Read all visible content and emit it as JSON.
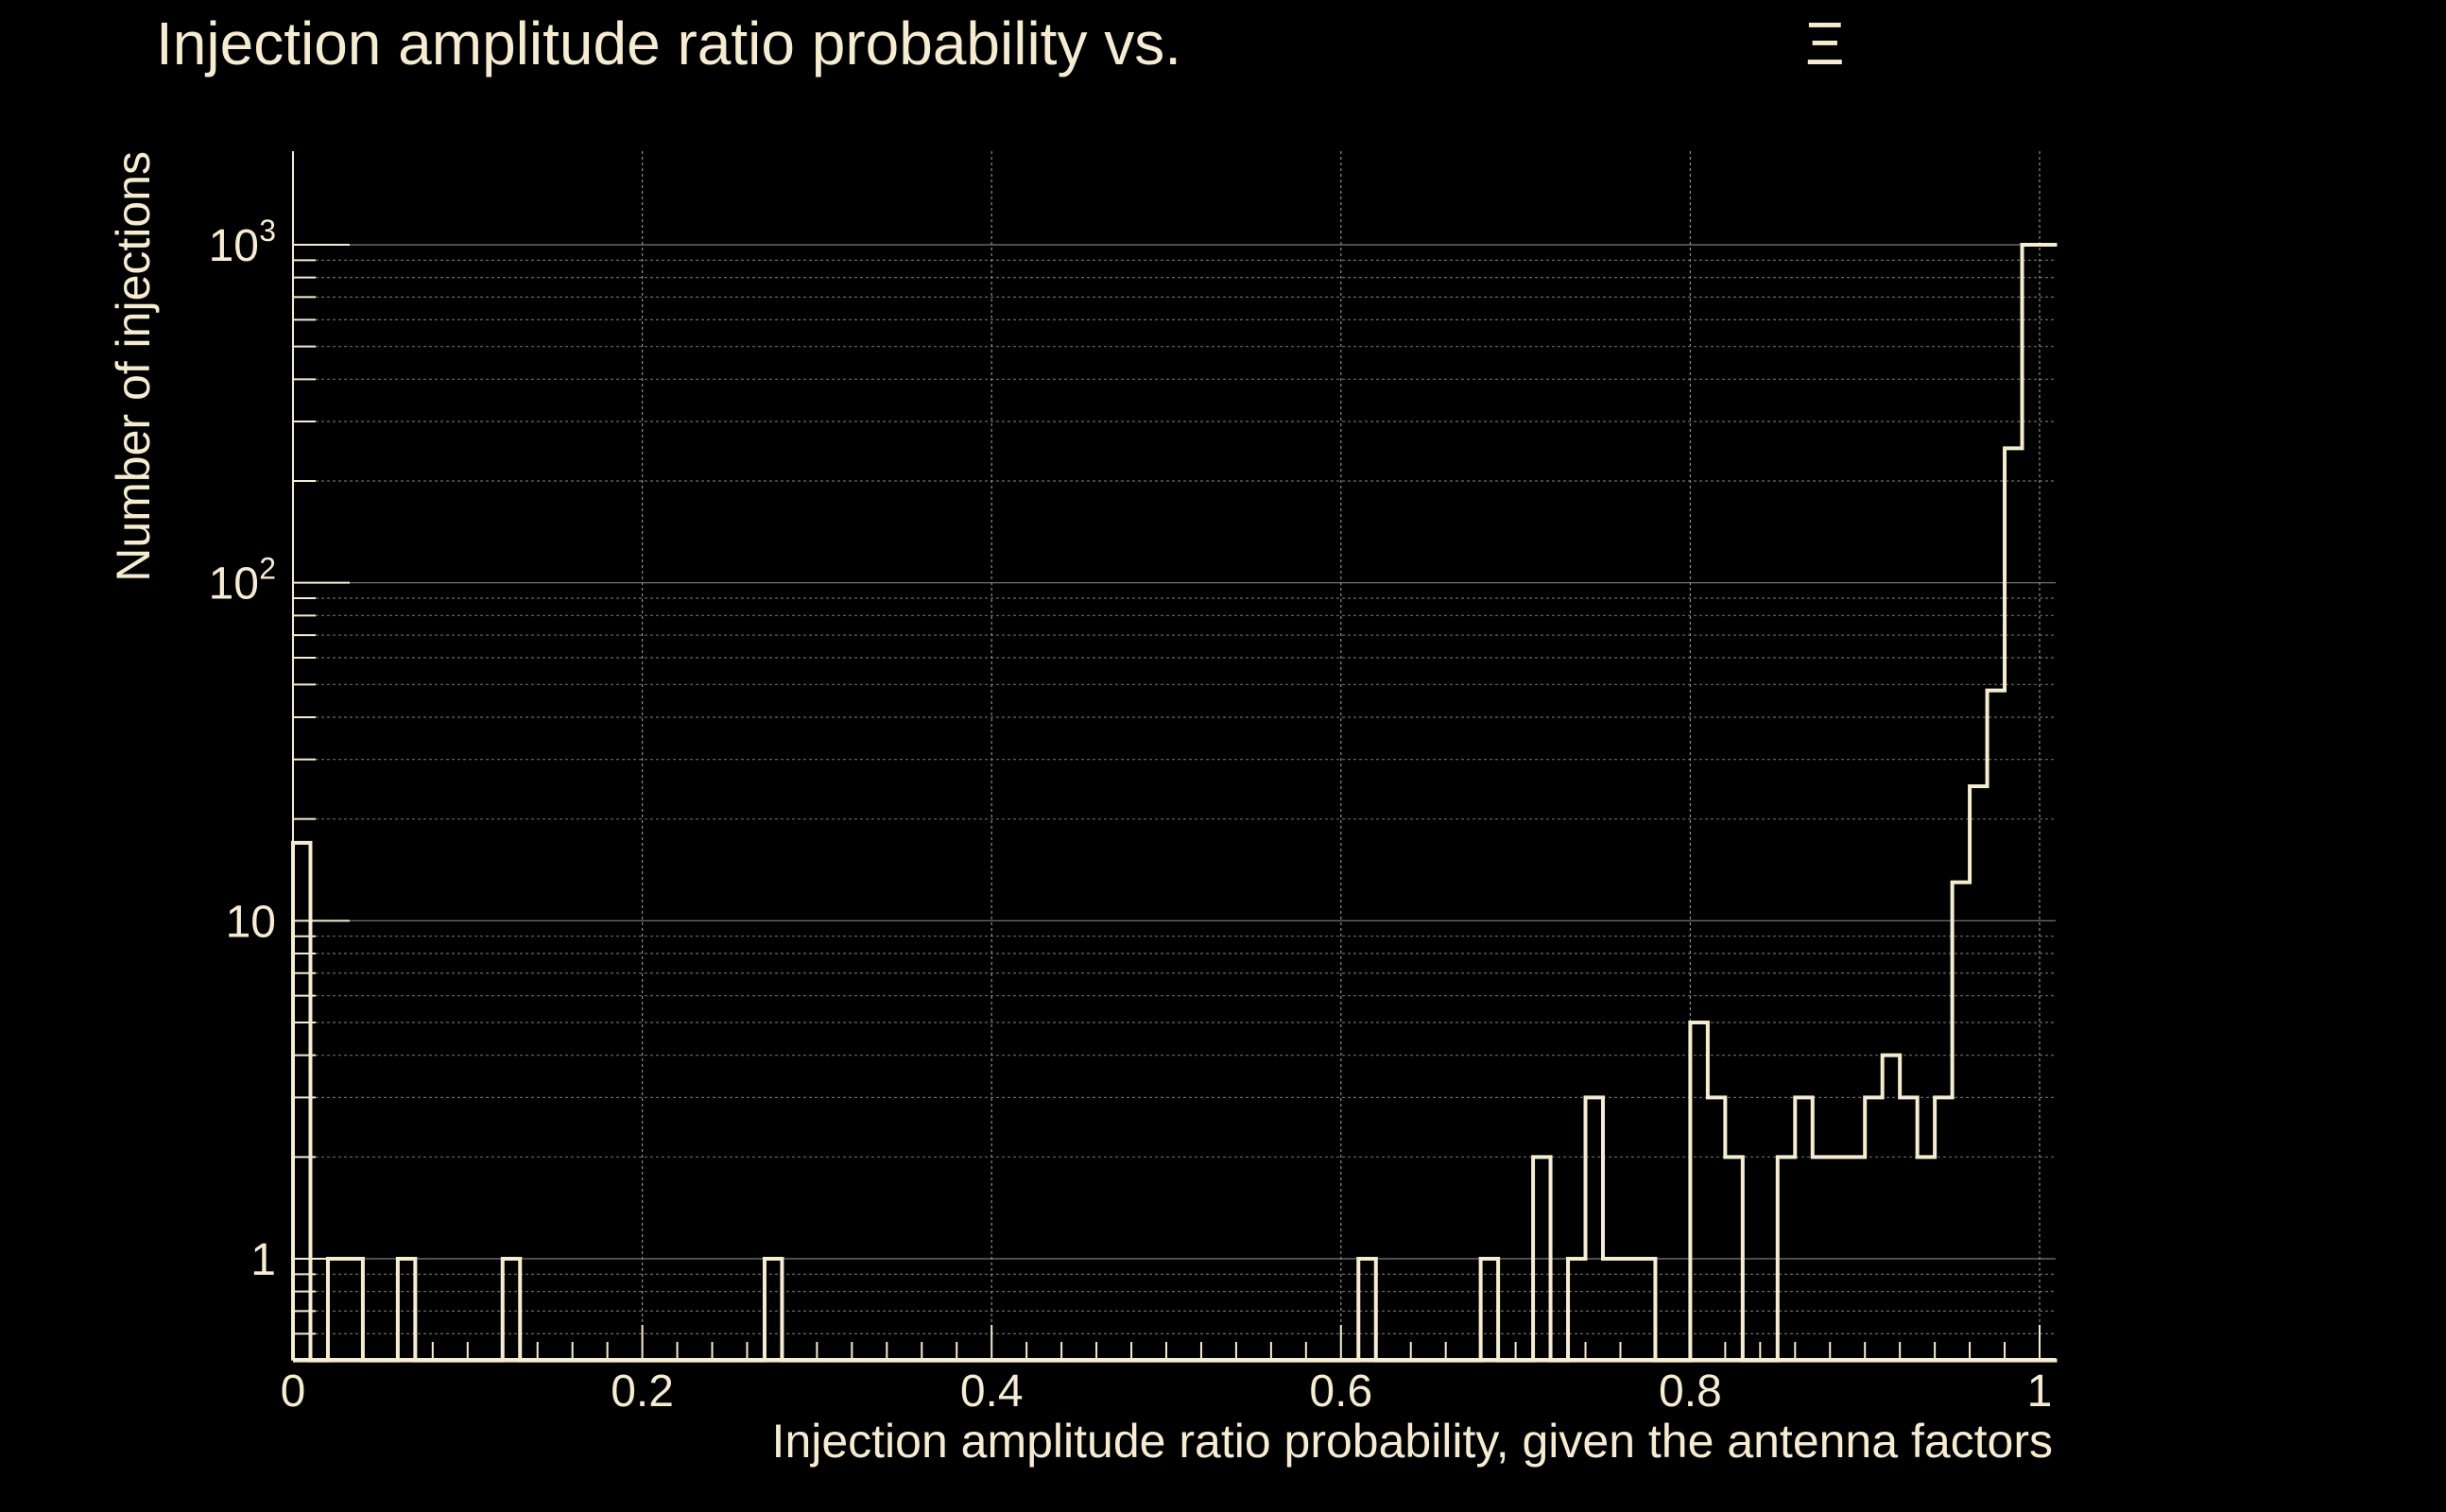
{
  "colors": {
    "background": "#000000",
    "foreground": "#f5ecd2",
    "grid": "#8c8c8c"
  },
  "chart_data": {
    "type": "bar",
    "style": "step histogram",
    "title": "Injection amplitude ratio probability vs.",
    "title_symbol": "Ξ",
    "xlabel": "Injection amplitude ratio probability, given the antenna factors",
    "ylabel": "Number of injections",
    "xlim": [
      0,
      1.01
    ],
    "ylim": [
      0.5,
      2000
    ],
    "yscale": "log",
    "grid": true,
    "x_ticks": [
      {
        "value": 0,
        "label": "0"
      },
      {
        "value": 0.2,
        "label": "0.2"
      },
      {
        "value": 0.4,
        "label": "0.4"
      },
      {
        "value": 0.6,
        "label": "0.6"
      },
      {
        "value": 0.8,
        "label": "0.8"
      },
      {
        "value": 1,
        "label": "1"
      }
    ],
    "y_ticks": [
      {
        "value": 1,
        "base": "1",
        "exponent": ""
      },
      {
        "value": 10,
        "base": "10",
        "exponent": ""
      },
      {
        "value": 100,
        "base": "10",
        "exponent": "2"
      },
      {
        "value": 1000,
        "base": "10",
        "exponent": "3"
      }
    ],
    "bin_width": 0.01,
    "bins": [
      {
        "x": 0.0,
        "count": 17
      },
      {
        "x": 0.02,
        "count": 1
      },
      {
        "x": 0.03,
        "count": 1
      },
      {
        "x": 0.06,
        "count": 1
      },
      {
        "x": 0.12,
        "count": 1
      },
      {
        "x": 0.27,
        "count": 1
      },
      {
        "x": 0.61,
        "count": 1
      },
      {
        "x": 0.68,
        "count": 1
      },
      {
        "x": 0.71,
        "count": 2
      },
      {
        "x": 0.73,
        "count": 1
      },
      {
        "x": 0.74,
        "count": 3
      },
      {
        "x": 0.75,
        "count": 1
      },
      {
        "x": 0.76,
        "count": 1
      },
      {
        "x": 0.77,
        "count": 1
      },
      {
        "x": 0.8,
        "count": 5
      },
      {
        "x": 0.81,
        "count": 3
      },
      {
        "x": 0.82,
        "count": 2
      },
      {
        "x": 0.85,
        "count": 2
      },
      {
        "x": 0.86,
        "count": 3
      },
      {
        "x": 0.87,
        "count": 2
      },
      {
        "x": 0.88,
        "count": 2
      },
      {
        "x": 0.89,
        "count": 2
      },
      {
        "x": 0.9,
        "count": 3
      },
      {
        "x": 0.91,
        "count": 4
      },
      {
        "x": 0.92,
        "count": 3
      },
      {
        "x": 0.93,
        "count": 2
      },
      {
        "x": 0.94,
        "count": 3
      },
      {
        "x": 0.95,
        "count": 13
      },
      {
        "x": 0.96,
        "count": 25
      },
      {
        "x": 0.97,
        "count": 48
      },
      {
        "x": 0.98,
        "count": 250
      },
      {
        "x": 0.99,
        "count": 1000
      },
      {
        "x": 1.0,
        "count": 1000
      }
    ]
  }
}
